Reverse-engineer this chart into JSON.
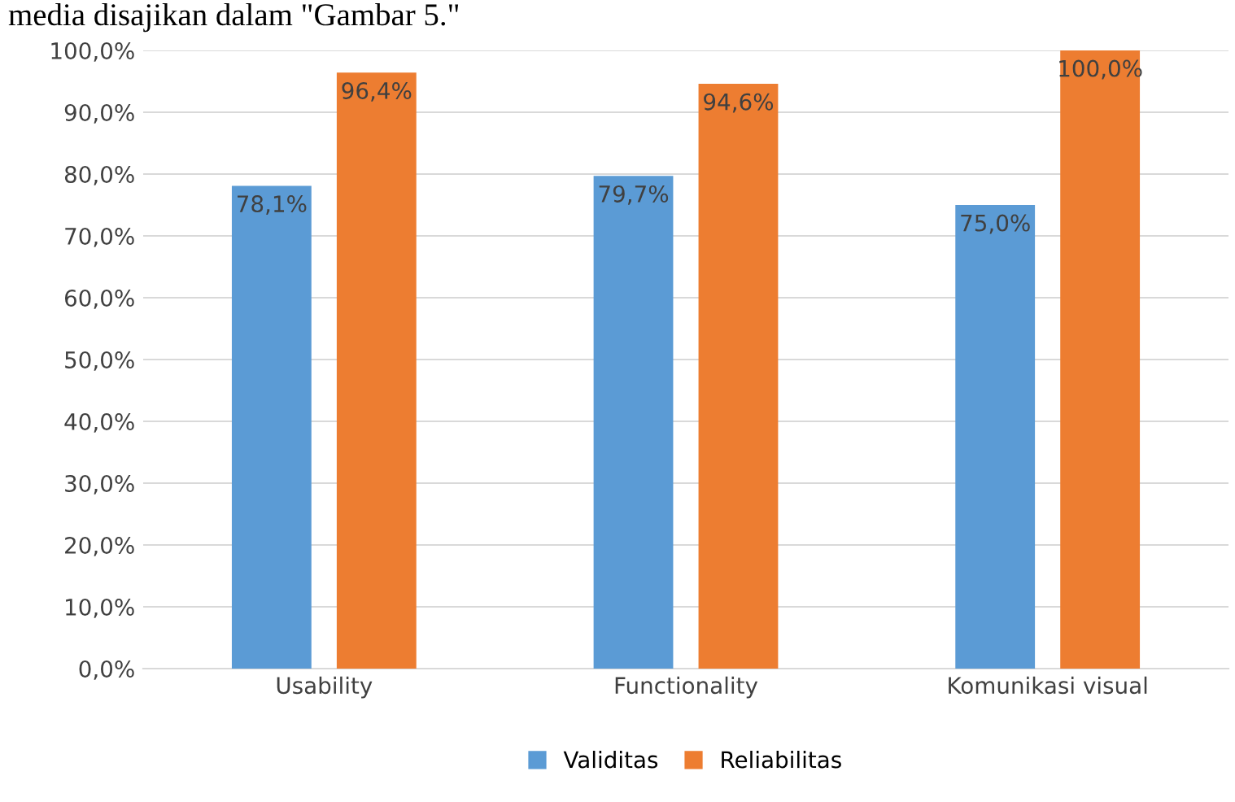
{
  "chart_data": {
    "type": "bar",
    "categories": [
      "Usability",
      "Functionality",
      "Komunikasi visual"
    ],
    "series": [
      {
        "name": "Validitas",
        "color": "#5b9bd5",
        "values": [
          78.1,
          79.7,
          75.0
        ],
        "value_labels": [
          "78,1%",
          "79,7%",
          "75,0%"
        ]
      },
      {
        "name": "Reliabilitas",
        "color": "#ed7d31",
        "values": [
          96.4,
          94.6,
          100.0
        ],
        "value_labels": [
          "96,4%",
          "94,6%",
          "100,0%"
        ]
      }
    ],
    "ylim": [
      0,
      100
    ],
    "yticks": [
      {
        "value": 0,
        "label": "0,0%"
      },
      {
        "value": 10,
        "label": "10,0%"
      },
      {
        "value": 20,
        "label": "20,0%"
      },
      {
        "value": 30,
        "label": "30,0%"
      },
      {
        "value": 40,
        "label": "40,0%"
      },
      {
        "value": 50,
        "label": "50,0%"
      },
      {
        "value": 60,
        "label": "60,0%"
      },
      {
        "value": 70,
        "label": "70,0%"
      },
      {
        "value": 80,
        "label": "80,0%"
      },
      {
        "value": 90,
        "label": "90,0%"
      },
      {
        "value": 100,
        "label": "100,0%"
      }
    ],
    "grid": "y",
    "legend": "bottom",
    "annotations": [
      "media disajikan dalam \"Gambar 5.\""
    ]
  }
}
